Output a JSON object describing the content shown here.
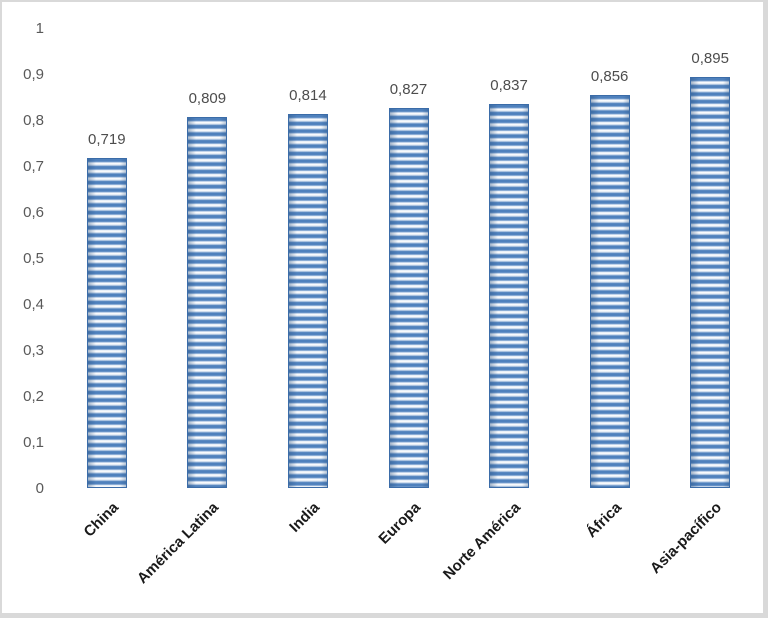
{
  "chart_data": {
    "type": "bar",
    "title": "",
    "xlabel": "",
    "ylabel": "",
    "categories": [
      "China",
      "América Latina",
      "India",
      "Europa",
      "Norte América",
      "África",
      "Asia-pacífico"
    ],
    "values": [
      0.719,
      0.809,
      0.814,
      0.827,
      0.837,
      0.856,
      0.895
    ],
    "value_labels": [
      "0,719",
      "0,809",
      "0,814",
      "0,827",
      "0,837",
      "0,856",
      "0,895"
    ],
    "y_ticks": [
      "0",
      "0,1",
      "0,2",
      "0,3",
      "0,4",
      "0,5",
      "0,6",
      "0,7",
      "0,8",
      "0,9",
      "1"
    ],
    "y_tick_values": [
      0,
      0.1,
      0.2,
      0.3,
      0.4,
      0.5,
      0.6,
      0.7,
      0.8,
      0.9,
      1
    ],
    "ylim": [
      0,
      1
    ],
    "decimal_separator": ",",
    "gridlines": false,
    "legend_position": "none",
    "bar_fill_style": "horizontal-stripes",
    "category_label_rotation_deg": 45,
    "colors": {
      "bar_primary": "#4f81bd",
      "bar_stripe_light": "#dce6f2",
      "bar_border": "#3b6ca8",
      "tick_label": "#595959",
      "value_label": "#4d4d4d",
      "category_label": "#1a1a1a",
      "frame_border": "#d9d9d9",
      "background": "#ffffff"
    }
  }
}
